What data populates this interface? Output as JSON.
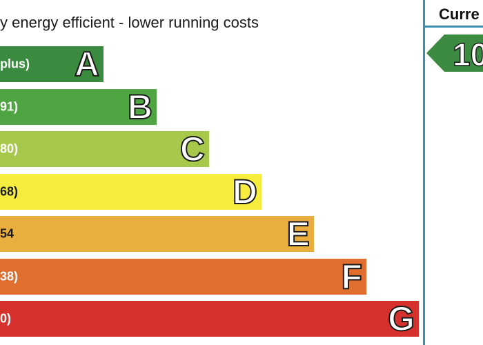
{
  "heading": "y energy efficient - lower running costs",
  "column_header": "Curre",
  "current_rating": {
    "value_text": "10",
    "color": "#3d8b40"
  },
  "chart_data": {
    "type": "bar",
    "orientation": "horizontal",
    "title": "y energy efficient - lower running costs",
    "categories": [
      "A",
      "B",
      "C",
      "D",
      "E",
      "F",
      "G"
    ],
    "range_labels": [
      "plus)",
      "91)",
      "80)",
      "68)",
      "54",
      "38)",
      "0)"
    ],
    "values": [
      150,
      227,
      303,
      379,
      455,
      531,
      607
    ],
    "colors": [
      "#3a8a3f",
      "#4ea542",
      "#a6c94b",
      "#f7ed3e",
      "#eaae3e",
      "#df6e2f",
      "#d7312d"
    ]
  }
}
